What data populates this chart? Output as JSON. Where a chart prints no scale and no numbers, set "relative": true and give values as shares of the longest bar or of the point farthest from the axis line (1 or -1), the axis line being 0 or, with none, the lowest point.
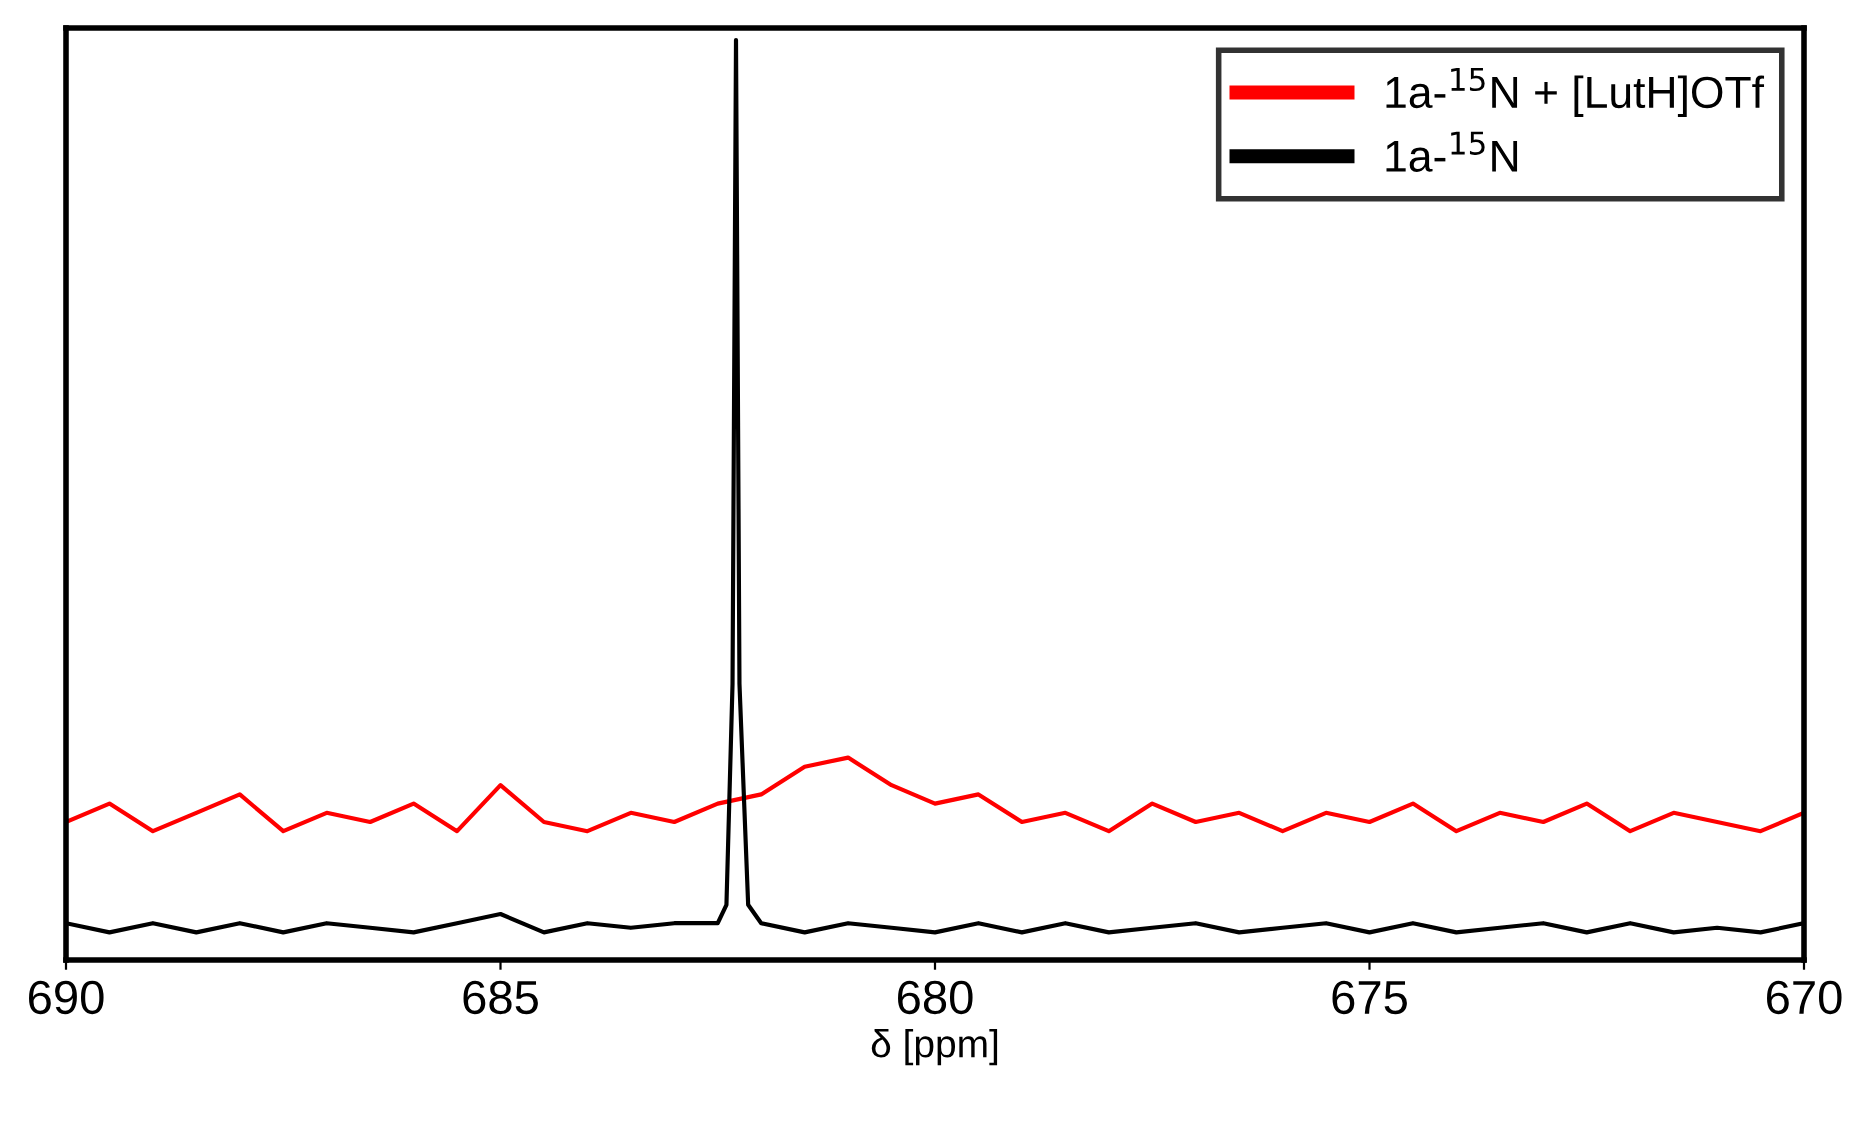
{
  "chart_data": {
    "type": "line",
    "relative": true,
    "xlabel": "δ [ppm]",
    "xlim": [
      690,
      670
    ],
    "xticks": [
      690,
      685,
      680,
      675,
      670
    ],
    "legend": "top right",
    "grid": false,
    "series": [
      {
        "name": "1a-$^{15}$N + [LutH]OTf",
        "color": "#ff0000",
        "x": [
          690,
          689.5,
          689,
          688.5,
          688,
          687.5,
          687,
          686.5,
          686,
          685.5,
          685,
          684.5,
          684,
          683.5,
          683,
          682.5,
          682,
          681.5,
          681,
          680.5,
          680,
          679.5,
          679,
          678.5,
          678,
          677.5,
          677,
          676.5,
          676,
          675.5,
          675,
          674.5,
          674,
          673.5,
          673,
          672.5,
          672,
          671.5,
          671,
          670.5,
          670
        ],
        "values": [
          0.15,
          0.17,
          0.14,
          0.16,
          0.18,
          0.14,
          0.16,
          0.15,
          0.17,
          0.14,
          0.19,
          0.15,
          0.14,
          0.16,
          0.15,
          0.17,
          0.18,
          0.21,
          0.22,
          0.19,
          0.17,
          0.18,
          0.15,
          0.16,
          0.14,
          0.17,
          0.15,
          0.16,
          0.14,
          0.16,
          0.15,
          0.17,
          0.14,
          0.16,
          0.15,
          0.17,
          0.14,
          0.16,
          0.15,
          0.14,
          0.16
        ]
      },
      {
        "name": "1a-$^{15}$N",
        "color": "#000000",
        "x": [
          690,
          689.5,
          689,
          688.5,
          688,
          687.5,
          687,
          686.5,
          686,
          685.5,
          685,
          684.5,
          684,
          683.5,
          683,
          682.5,
          682.4,
          682.33,
          682.29,
          682.25,
          682.15,
          682,
          681.5,
          681,
          680.5,
          680,
          679.5,
          679,
          678.5,
          678,
          677.5,
          677,
          676.5,
          676,
          675.5,
          675,
          674.5,
          674,
          673.5,
          673,
          672.5,
          672,
          671.5,
          671,
          670.5,
          670
        ],
        "values": [
          0.04,
          0.03,
          0.04,
          0.03,
          0.04,
          0.03,
          0.04,
          0.035,
          0.03,
          0.04,
          0.05,
          0.03,
          0.04,
          0.035,
          0.04,
          0.04,
          0.06,
          0.3,
          1,
          0.3,
          0.06,
          0.04,
          0.03,
          0.04,
          0.035,
          0.03,
          0.04,
          0.03,
          0.04,
          0.03,
          0.035,
          0.04,
          0.03,
          0.035,
          0.04,
          0.03,
          0.04,
          0.03,
          0.035,
          0.04,
          0.03,
          0.04,
          0.03,
          0.035,
          0.03,
          0.04
        ]
      }
    ]
  }
}
